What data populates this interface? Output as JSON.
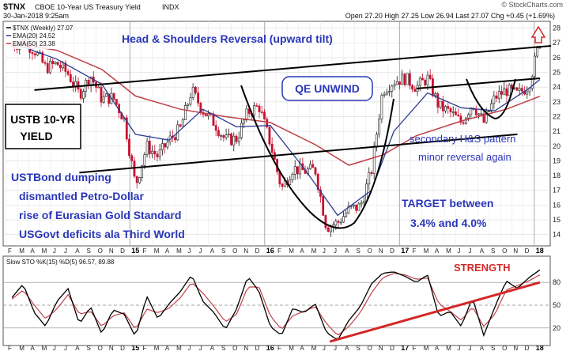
{
  "header": {
    "symbol": "$TNX",
    "name": "CBOE 10-Year US Treasury Yield",
    "exchange": "INDX",
    "date": "30-Jan-2018 9:25am",
    "quote": "Open 27.20  High 27.25  Low 26.94  Last 27.07  Chg +0.45 (+1.69%)",
    "watermark": "© StockCharts.com"
  },
  "legend": {
    "price": "$TNX (Weekly) 27.07",
    "ema20": "EMA(20) 24.52",
    "ema50": "EMA(50) 23.38",
    "sto": "Slow STO %K(15) %D(5) 96.57, 89.88"
  },
  "annotations": {
    "title": "Head & Shoulders Reversal (upward tilt)",
    "qe": "QE UNWIND",
    "ustb_line1": "USTB 10-YR",
    "ustb_line2": "YIELD",
    "secondary_line1": "secondary H&S pattern",
    "secondary_line2": "minor reversal again",
    "dumping_line1": "USTBond dumping",
    "dumping_line2": "dismantled Petro-Dollar",
    "dumping_line3": "rise of Eurasian Gold Standard",
    "dumping_line4": "USGovt deficits ala Third World",
    "target_line1": "TARGET between",
    "target_line2": "3.4% and 4.0%",
    "strength": "STRENGTH"
  },
  "colors": {
    "up": "#1a1a1a",
    "down": "#c8102e",
    "ema20": "#2b3b8f",
    "ema50": "#c0404a",
    "annotation_blue": "#2a36b8",
    "annotation_red": "#d42828"
  },
  "chart_data": [
    {
      "type": "candlestick",
      "interval": "weekly",
      "yaxis_ticks": [
        "14",
        "15",
        "16",
        "17",
        "18",
        "19",
        "20",
        "21",
        "22",
        "23",
        "24",
        "25",
        "26",
        "27",
        "28"
      ],
      "ylim": [
        13.5,
        28.3
      ],
      "x_month_labels": [
        "F",
        "M",
        "A",
        "M",
        "J",
        "J",
        "A",
        "S",
        "O",
        "N",
        "D",
        "15",
        "F",
        "M",
        "A",
        "M",
        "J",
        "J",
        "A",
        "S",
        "O",
        "N",
        "D",
        "16",
        "F",
        "M",
        "A",
        "M",
        "J",
        "J",
        "A",
        "S",
        "O",
        "N",
        "D",
        "17",
        "F",
        "M",
        "A",
        "M",
        "J",
        "J",
        "A",
        "S",
        "O",
        "N",
        "D",
        "18"
      ],
      "x_year_labels": [
        "15",
        "16",
        "17",
        "18"
      ],
      "close_path": [
        [
          "2014-02",
          26.8
        ],
        [
          "2014-03",
          27.1
        ],
        [
          "2014-04",
          26.5
        ],
        [
          "2014-05",
          25.3
        ],
        [
          "2014-06",
          25.6
        ],
        [
          "2014-07",
          24.9
        ],
        [
          "2014-08",
          23.5
        ],
        [
          "2014-09",
          24.8
        ],
        [
          "2014-10",
          23.2
        ],
        [
          "2014-11",
          23.3
        ],
        [
          "2014-12",
          21.8
        ],
        [
          "2015-01",
          17.3
        ],
        [
          "2015-02",
          20.0
        ],
        [
          "2015-03",
          19.3
        ],
        [
          "2015-04",
          20.4
        ],
        [
          "2015-05",
          21.2
        ],
        [
          "2015-06",
          23.8
        ],
        [
          "2015-07",
          22.4
        ],
        [
          "2015-08",
          21.6
        ],
        [
          "2015-09",
          20.4
        ],
        [
          "2015-10",
          20.5
        ],
        [
          "2015-11",
          22.3
        ],
        [
          "2015-12",
          22.7
        ],
        [
          "2016-01",
          20.2
        ],
        [
          "2016-02",
          17.1
        ],
        [
          "2016-03",
          18.5
        ],
        [
          "2016-04",
          18.3
        ],
        [
          "2016-05",
          18.4
        ],
        [
          "2016-06",
          14.5
        ],
        [
          "2016-07",
          14.8
        ],
        [
          "2016-08",
          15.7
        ],
        [
          "2016-09",
          15.9
        ],
        [
          "2016-10",
          18.3
        ],
        [
          "2016-11",
          23.8
        ],
        [
          "2016-12",
          24.4
        ],
        [
          "2017-01",
          24.6
        ],
        [
          "2017-02",
          24.0
        ],
        [
          "2017-03",
          24.6
        ],
        [
          "2017-04",
          22.7
        ],
        [
          "2017-05",
          22.3
        ],
        [
          "2017-06",
          21.6
        ],
        [
          "2017-07",
          22.9
        ],
        [
          "2017-08",
          21.6
        ],
        [
          "2017-09",
          23.3
        ],
        [
          "2017-10",
          23.8
        ],
        [
          "2017-11",
          23.5
        ],
        [
          "2017-12",
          24.1
        ],
        [
          "2018-01",
          27.1
        ]
      ],
      "ema20_path": [
        [
          "2014-02",
          27.0
        ],
        [
          "2014-06",
          25.9
        ],
        [
          "2014-10",
          24.2
        ],
        [
          "2015-01",
          20.8
        ],
        [
          "2015-04",
          20.4
        ],
        [
          "2015-07",
          22.5
        ],
        [
          "2015-10",
          21.3
        ],
        [
          "2016-01",
          21.4
        ],
        [
          "2016-04",
          18.5
        ],
        [
          "2016-07",
          15.3
        ],
        [
          "2016-10",
          17.0
        ],
        [
          "2016-12",
          21.0
        ],
        [
          "2017-03",
          23.6
        ],
        [
          "2017-06",
          22.6
        ],
        [
          "2017-09",
          22.4
        ],
        [
          "2017-12",
          23.9
        ],
        [
          "2018-01",
          24.52
        ]
      ],
      "ema50_path": [
        [
          "2014-02",
          27.0
        ],
        [
          "2014-06",
          26.5
        ],
        [
          "2014-10",
          25.2
        ],
        [
          "2015-01",
          23.4
        ],
        [
          "2015-05",
          22.5
        ],
        [
          "2015-09",
          22.0
        ],
        [
          "2016-01",
          21.6
        ],
        [
          "2016-05",
          20.1
        ],
        [
          "2016-08",
          18.7
        ],
        [
          "2016-11",
          19.4
        ],
        [
          "2017-02",
          20.7
        ],
        [
          "2017-06",
          21.7
        ],
        [
          "2017-10",
          22.5
        ],
        [
          "2018-01",
          23.38
        ]
      ],
      "trendlines": [
        {
          "name": "upper-neckline",
          "from": [
            "2014-04",
            23.8
          ],
          "to": [
            "2018-02",
            26.8
          ]
        },
        {
          "name": "lower-trendline",
          "from": [
            "2014-08",
            18.2
          ],
          "to": [
            "2017-11",
            20.8
          ]
        },
        {
          "name": "secondary-neckline",
          "from": [
            "2017-02",
            23.9
          ],
          "to": [
            "2018-01",
            24.6
          ]
        }
      ]
    },
    {
      "type": "line",
      "name": "Slow STO %K(15) %D(5)",
      "yaxis_ticks": [
        "20",
        "50",
        "80"
      ],
      "ylim": [
        0,
        100
      ],
      "k_last": 96.57,
      "d_last": 89.88,
      "k_path": [
        [
          "2014-02",
          60
        ],
        [
          "2014-03",
          78
        ],
        [
          "2014-04",
          40
        ],
        [
          "2014-05",
          22
        ],
        [
          "2014-06",
          55
        ],
        [
          "2014-07",
          72
        ],
        [
          "2014-08",
          25
        ],
        [
          "2014-09",
          48
        ],
        [
          "2014-10",
          12
        ],
        [
          "2014-11",
          44
        ],
        [
          "2014-12",
          38
        ],
        [
          "2015-01",
          8
        ],
        [
          "2015-02",
          62
        ],
        [
          "2015-03",
          32
        ],
        [
          "2015-04",
          52
        ],
        [
          "2015-05",
          68
        ],
        [
          "2015-06",
          90
        ],
        [
          "2015-07",
          55
        ],
        [
          "2015-08",
          40
        ],
        [
          "2015-09",
          18
        ],
        [
          "2015-10",
          45
        ],
        [
          "2015-11",
          88
        ],
        [
          "2015-12",
          68
        ],
        [
          "2016-01",
          22
        ],
        [
          "2016-02",
          10
        ],
        [
          "2016-03",
          46
        ],
        [
          "2016-04",
          40
        ],
        [
          "2016-05",
          52
        ],
        [
          "2016-06",
          14
        ],
        [
          "2016-07",
          4
        ],
        [
          "2016-08",
          30
        ],
        [
          "2016-09",
          48
        ],
        [
          "2016-10",
          78
        ],
        [
          "2016-11",
          92
        ],
        [
          "2016-12",
          94
        ],
        [
          "2017-01",
          88
        ],
        [
          "2017-02",
          80
        ],
        [
          "2017-03",
          90
        ],
        [
          "2017-04",
          35
        ],
        [
          "2017-05",
          42
        ],
        [
          "2017-06",
          22
        ],
        [
          "2017-07",
          60
        ],
        [
          "2017-08",
          10
        ],
        [
          "2017-09",
          48
        ],
        [
          "2017-10",
          82
        ],
        [
          "2017-11",
          72
        ],
        [
          "2017-12",
          86
        ],
        [
          "2018-01",
          96.57
        ]
      ],
      "d_path": [
        [
          "2014-02",
          58
        ],
        [
          "2014-03",
          70
        ],
        [
          "2014-04",
          50
        ],
        [
          "2014-05",
          32
        ],
        [
          "2014-06",
          45
        ],
        [
          "2014-07",
          64
        ],
        [
          "2014-08",
          38
        ],
        [
          "2014-09",
          42
        ],
        [
          "2014-10",
          22
        ],
        [
          "2014-11",
          36
        ],
        [
          "2014-12",
          40
        ],
        [
          "2015-01",
          18
        ],
        [
          "2015-02",
          45
        ],
        [
          "2015-03",
          40
        ],
        [
          "2015-04",
          46
        ],
        [
          "2015-05",
          60
        ],
        [
          "2015-06",
          80
        ],
        [
          "2015-07",
          66
        ],
        [
          "2015-08",
          48
        ],
        [
          "2015-09",
          28
        ],
        [
          "2015-10",
          38
        ],
        [
          "2015-11",
          74
        ],
        [
          "2015-12",
          74
        ],
        [
          "2016-01",
          36
        ],
        [
          "2016-02",
          18
        ],
        [
          "2016-03",
          36
        ],
        [
          "2016-04",
          42
        ],
        [
          "2016-05",
          48
        ],
        [
          "2016-06",
          26
        ],
        [
          "2016-07",
          10
        ],
        [
          "2016-08",
          22
        ],
        [
          "2016-09",
          40
        ],
        [
          "2016-10",
          66
        ],
        [
          "2016-11",
          86
        ],
        [
          "2016-12",
          92
        ],
        [
          "2017-01",
          90
        ],
        [
          "2017-02",
          84
        ],
        [
          "2017-03",
          86
        ],
        [
          "2017-04",
          52
        ],
        [
          "2017-05",
          42
        ],
        [
          "2017-06",
          30
        ],
        [
          "2017-07",
          48
        ],
        [
          "2017-08",
          22
        ],
        [
          "2017-09",
          38
        ],
        [
          "2017-10",
          70
        ],
        [
          "2017-11",
          76
        ],
        [
          "2017-12",
          82
        ],
        [
          "2018-01",
          89.88
        ]
      ],
      "trendline": {
        "name": "strength-trendline",
        "from": [
          "2016-07",
          2
        ],
        "to": [
          "2018-01",
          80
        ]
      }
    }
  ]
}
